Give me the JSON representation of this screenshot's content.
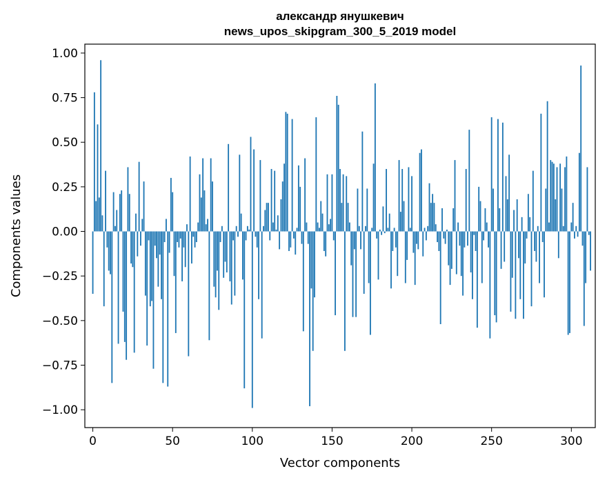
{
  "chart_data": {
    "type": "bar",
    "title": "александр янушкевич",
    "subtitle": "news_upos_skipgram_300_5_2019 model",
    "xlabel": "Vector components",
    "ylabel": "Components values",
    "xlim": [
      -5,
      315
    ],
    "ylim": [
      -1.1,
      1.05
    ],
    "xticks": [
      0,
      50,
      100,
      150,
      200,
      250,
      300
    ],
    "xtick_labels": [
      "0",
      "50",
      "100",
      "150",
      "200",
      "250",
      "300"
    ],
    "yticks": [
      1.0,
      0.75,
      0.5,
      0.25,
      0.0,
      -0.25,
      -0.5,
      -0.75,
      -1.0
    ],
    "ytick_labels": [
      "1.00",
      "0.75",
      "0.50",
      "0.25",
      "0.00",
      "−0.25",
      "−0.50",
      "−0.75",
      "−1.00"
    ],
    "grid": false,
    "bar_color": "#1f77b4",
    "values": [
      -0.35,
      0.78,
      0.17,
      0.6,
      0.19,
      0.96,
      0.09,
      -0.42,
      0.34,
      -0.09,
      -0.22,
      -0.24,
      -0.85,
      0.22,
      0.03,
      0.12,
      -0.63,
      0.21,
      0.23,
      -0.45,
      -0.62,
      -0.72,
      0.36,
      0.21,
      -0.18,
      -0.2,
      -0.68,
      0.1,
      -0.14,
      0.39,
      -0.08,
      0.07,
      0.28,
      -0.36,
      -0.64,
      -0.05,
      -0.42,
      -0.39,
      -0.77,
      -0.08,
      -0.15,
      -0.31,
      -0.13,
      -0.38,
      -0.85,
      -0.06,
      0.07,
      -0.87,
      -0.12,
      0.3,
      0.22,
      -0.25,
      -0.57,
      -0.06,
      -0.09,
      -0.04,
      -0.28,
      -0.09,
      -0.2,
      0.04,
      -0.7,
      0.42,
      -0.18,
      -0.03,
      -0.09,
      -0.06,
      0.05,
      0.32,
      0.19,
      0.41,
      0.23,
      0.04,
      0.07,
      -0.61,
      0.41,
      0.28,
      -0.31,
      -0.37,
      -0.22,
      -0.44,
      -0.06,
      0.03,
      -0.26,
      -0.17,
      -0.23,
      0.49,
      -0.28,
      -0.41,
      -0.05,
      -0.36,
      0.03,
      -0.03,
      0.43,
      0.1,
      -0.27,
      -0.88,
      -0.05,
      0.03,
      0.01,
      0.53,
      -0.99,
      0.46,
      -0.03,
      -0.09,
      -0.38,
      0.4,
      -0.6,
      0.03,
      0.12,
      0.16,
      0.16,
      -0.05,
      0.35,
      0.05,
      0.34,
      0.01,
      0.09,
      -0.1,
      0.18,
      0.28,
      0.38,
      0.67,
      0.66,
      -0.11,
      -0.09,
      0.63,
      -0.04,
      -0.13,
      0.02,
      0.37,
      0.25,
      -0.07,
      -0.56,
      0.41,
      0.05,
      -0.07,
      -0.98,
      -0.32,
      -0.67,
      -0.37,
      0.64,
      0.05,
      0.02,
      0.17,
      0.1,
      -0.11,
      -0.14,
      0.32,
      0.04,
      0.07,
      0.32,
      -0.05,
      -0.47,
      0.76,
      0.71,
      0.35,
      0.16,
      0.32,
      -0.67,
      0.31,
      0.16,
      0.05,
      -0.19,
      -0.48,
      -0.1,
      -0.48,
      0.24,
      0.03,
      -0.1,
      0.56,
      -0.35,
      0.03,
      0.24,
      -0.29,
      -0.58,
      0.02,
      0.38,
      0.83,
      -0.04,
      -0.27,
      0.01,
      -0.02,
      0.14,
      -0.01,
      0.35,
      0.02,
      0.1,
      -0.32,
      -0.11,
      0.02,
      -0.09,
      -0.25,
      0.4,
      0.11,
      0.35,
      0.17,
      -0.29,
      -0.16,
      0.36,
      0.02,
      0.31,
      -0.12,
      -0.3,
      -0.07,
      -0.1,
      0.44,
      0.46,
      -0.14,
      0.02,
      -0.05,
      0.03,
      0.27,
      0.16,
      0.21,
      0.16,
      0.04,
      -0.06,
      -0.11,
      -0.52,
      0.13,
      -0.04,
      -0.07,
      0.01,
      -0.19,
      -0.3,
      -0.21,
      0.13,
      0.4,
      -0.24,
      0.05,
      -0.08,
      -0.25,
      -0.36,
      -0.09,
      0.35,
      -0.08,
      0.57,
      -0.23,
      -0.38,
      -0.02,
      -0.11,
      -0.54,
      0.25,
      0.17,
      -0.29,
      -0.05,
      0.13,
      0.05,
      -0.09,
      -0.6,
      0.64,
      0.24,
      -0.47,
      -0.51,
      0.63,
      0.13,
      -0.21,
      0.61,
      -0.17,
      0.31,
      0.18,
      0.43,
      -0.45,
      -0.26,
      0.12,
      -0.49,
      0.18,
      -0.15,
      -0.38,
      0.08,
      -0.49,
      -0.18,
      -0.04,
      0.21,
      0.08,
      -0.42,
      0.34,
      -0.11,
      -0.17,
      0.03,
      -0.29,
      0.66,
      -0.06,
      -0.37,
      0.24,
      0.73,
      0.05,
      0.4,
      0.39,
      0.38,
      0.18,
      0.36,
      -0.15,
      0.38,
      0.24,
      0.03,
      0.36,
      0.42,
      -0.58,
      -0.57,
      0.05,
      0.16,
      -0.04,
      0.03,
      -0.03,
      0.44,
      0.93,
      -0.08,
      -0.53,
      -0.29,
      0.36,
      -0.02,
      -0.22
    ]
  }
}
